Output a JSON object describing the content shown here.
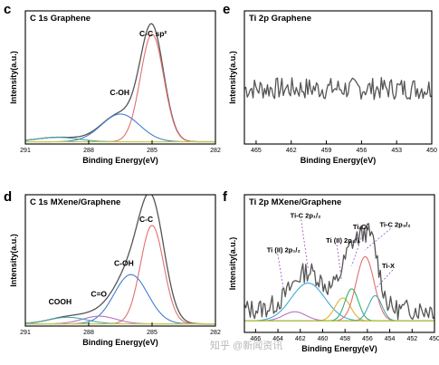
{
  "watermark": "知乎 @新闻资讯",
  "chart_data": [
    {
      "panel": "c",
      "type": "line",
      "title": "C 1s  Graphene",
      "xlabel": "Binding Energy(eV)",
      "ylabel": "Intensity(a.u.)",
      "xlim": [
        291,
        282
      ],
      "xticks": [
        291,
        288,
        285,
        282
      ],
      "xtick_labels": [
        "291",
        "288",
        "285",
        "282"
      ],
      "ylim": [
        0,
        1.2
      ],
      "annotations": [
        {
          "text": "C-C sp²",
          "x": 285.6,
          "y": 0.97
        },
        {
          "text": "C-OH",
          "x": 287.0,
          "y": 0.44
        }
      ],
      "series": [
        {
          "color": "#555555",
          "kind": "envelope",
          "peaks": [
            [
              285.0,
              1.0,
              0.55
            ],
            [
              286.5,
              0.25,
              0.9
            ],
            [
              289.5,
              0.04,
              1.0
            ]
          ],
          "baseline": 0.02
        },
        {
          "color": "#e07070",
          "kind": "component",
          "peaks": [
            [
              285.0,
              0.97,
              0.55
            ]
          ],
          "baseline": 0.02
        },
        {
          "color": "#3f7fd0",
          "kind": "component",
          "peaks": [
            [
              286.5,
              0.25,
              0.9
            ]
          ],
          "baseline": 0.02
        },
        {
          "color": "#4aa7b0",
          "kind": "component",
          "peaks": [
            [
              289.5,
              0.04,
              1.0
            ]
          ],
          "baseline": 0.02
        },
        {
          "color": "#c7c93a",
          "kind": "baseline",
          "peaks": [],
          "baseline": 0.02
        }
      ]
    },
    {
      "panel": "e",
      "type": "line",
      "title": "Ti 2p   Graphene",
      "xlabel": "Binding Energy(eV)",
      "ylabel": "Intensity(a.u.)",
      "xlim": [
        466,
        450
      ],
      "xticks": [
        465,
        462,
        459,
        456,
        453,
        450
      ],
      "xtick_labels": [
        "465",
        "462",
        "459",
        "456",
        "453",
        "450"
      ],
      "ylim": [
        0,
        1.2
      ],
      "annotations": [],
      "series": [
        {
          "color": "#555555",
          "kind": "noise",
          "level": 0.5,
          "amplitude": 0.1,
          "seed": 7
        }
      ]
    },
    {
      "panel": "d",
      "type": "line",
      "title": "C 1s  MXene/Graphene",
      "xlabel": "Binding Energy(eV)",
      "ylabel": "Intensity(a.u.)",
      "xlim": [
        291,
        282
      ],
      "xticks": [
        291,
        288,
        285,
        282
      ],
      "xtick_labels": [
        "291",
        "288",
        "285",
        "282"
      ],
      "ylim": [
        0,
        1.2
      ],
      "annotations": [
        {
          "text": "C-C",
          "x": 285.6,
          "y": 0.95
        },
        {
          "text": "C-OH",
          "x": 286.8,
          "y": 0.55
        },
        {
          "text": "C=O",
          "x": 287.9,
          "y": 0.27
        },
        {
          "text": "COOH",
          "x": 289.9,
          "y": 0.2
        }
      ],
      "series": [
        {
          "color": "#555555",
          "kind": "envelope",
          "peaks": [
            [
              285.0,
              0.97,
              0.6
            ],
            [
              286.0,
              0.45,
              0.8
            ],
            [
              287.5,
              0.07,
              0.8
            ],
            [
              289.0,
              0.06,
              0.9
            ]
          ],
          "baseline": 0.02
        },
        {
          "color": "#e07070",
          "kind": "component",
          "peaks": [
            [
              285.0,
              0.9,
              0.55
            ]
          ],
          "baseline": 0.02
        },
        {
          "color": "#3f7fd0",
          "kind": "component",
          "peaks": [
            [
              286.0,
              0.45,
              0.8
            ]
          ],
          "baseline": 0.02
        },
        {
          "color": "#b970c8",
          "kind": "component",
          "peaks": [
            [
              287.5,
              0.07,
              0.8
            ]
          ],
          "baseline": 0.02
        },
        {
          "color": "#4aa7b0",
          "kind": "component",
          "peaks": [
            [
              289.0,
              0.06,
              0.9
            ]
          ],
          "baseline": 0.02
        },
        {
          "color": "#c7c93a",
          "kind": "baseline",
          "peaks": [],
          "baseline": 0.02
        }
      ]
    },
    {
      "panel": "f",
      "type": "line",
      "title": "Ti 2p  MXene/Graphene",
      "xlabel": "Binding Energy(eV)",
      "ylabel": "Intensity(a.u.)",
      "xlim": [
        467,
        450
      ],
      "xticks": [
        466,
        464,
        462,
        460,
        458,
        456,
        454,
        452,
        450
      ],
      "xtick_labels": [
        "466",
        "464",
        "462",
        "460",
        "458",
        "456",
        "454",
        "452",
        "450"
      ],
      "ylim": [
        0,
        1.2
      ],
      "annotations": [
        {
          "text": "Ti-C 2p₁/₂",
          "x": 462.9,
          "y": 1.0
        },
        {
          "text": "Ti (II) 2p₁/₂",
          "x": 465.0,
          "y": 0.7
        },
        {
          "text": "Ti (II) 2p₃/₂",
          "x": 459.7,
          "y": 0.78
        },
        {
          "text": "TiₓOᵧ",
          "x": 457.3,
          "y": 0.9
        },
        {
          "text": "Ti-C 2p₃/₂",
          "x": 454.9,
          "y": 0.92
        },
        {
          "text": "Ti-X",
          "x": 454.7,
          "y": 0.56
        }
      ],
      "series": [
        {
          "color": "#555555",
          "kind": "noisy-envelope",
          "peaks": [
            [
              461.3,
              0.33,
              1.5
            ],
            [
              458.2,
              0.2,
              0.7
            ],
            [
              457.4,
              0.28,
              0.6
            ],
            [
              456.2,
              0.56,
              0.8
            ],
            [
              455.3,
              0.22,
              0.6
            ]
          ],
          "baseline": 0.2,
          "amplitude": 0.09,
          "seed": 13
        },
        {
          "color": "#3fa9d8",
          "kind": "component",
          "peaks": [
            [
              461.3,
              0.33,
              1.5
            ]
          ],
          "baseline": 0.1
        },
        {
          "color": "#b970c8",
          "kind": "component",
          "peaks": [
            [
              462.5,
              0.08,
              1.0
            ]
          ],
          "baseline": 0.1
        },
        {
          "color": "#e0b030",
          "kind": "component",
          "peaks": [
            [
              458.2,
              0.2,
              0.7
            ]
          ],
          "baseline": 0.1
        },
        {
          "color": "#30b070",
          "kind": "component",
          "peaks": [
            [
              457.4,
              0.28,
              0.6
            ]
          ],
          "baseline": 0.1
        },
        {
          "color": "#e07070",
          "kind": "component",
          "peaks": [
            [
              456.2,
              0.56,
              0.8
            ]
          ],
          "baseline": 0.1
        },
        {
          "color": "#4aa7b0",
          "kind": "component",
          "peaks": [
            [
              455.3,
              0.22,
              0.6
            ]
          ],
          "baseline": 0.1
        },
        {
          "color": "#c7c93a",
          "kind": "baseline",
          "peaks": [],
          "baseline": 0.1
        }
      ]
    }
  ]
}
